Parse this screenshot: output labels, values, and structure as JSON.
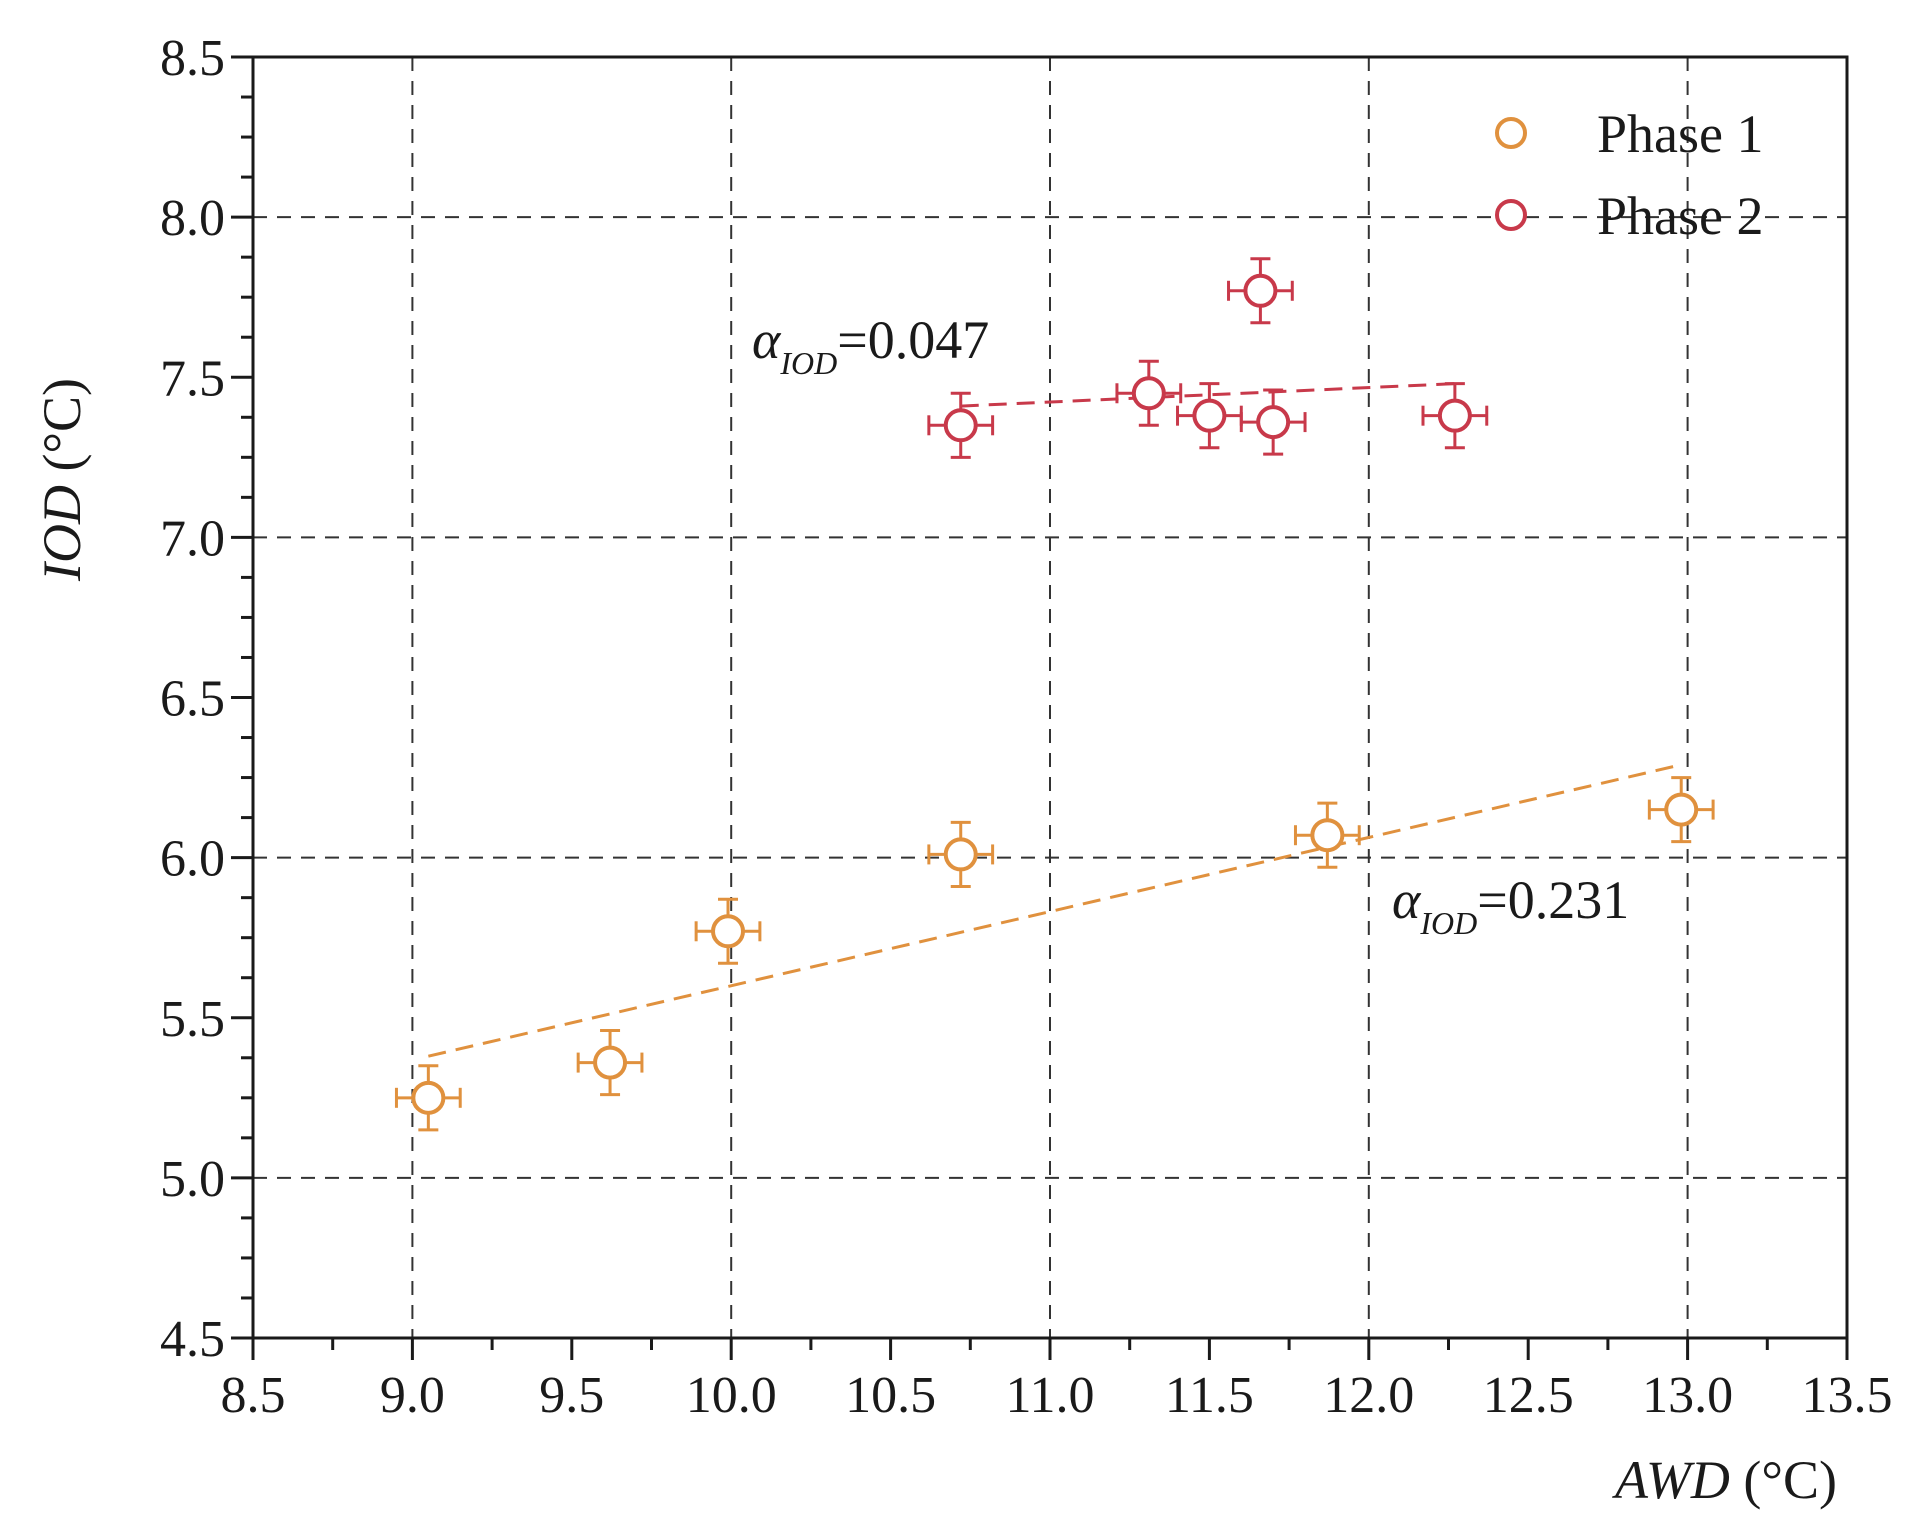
{
  "chart_data": {
    "type": "scatter",
    "xlabel": {
      "var": "AWD",
      "unit": " (°C)"
    },
    "ylabel": {
      "var": "IOD",
      "unit": " (°C)"
    },
    "xlim": [
      8.5,
      13.5
    ],
    "ylim": [
      4.5,
      8.5
    ],
    "xticks": [
      "8.5",
      "9.0",
      "9.5",
      "10.0",
      "10.5",
      "11.0",
      "11.5",
      "12.0",
      "12.5",
      "13.0",
      "13.5"
    ],
    "yticks": [
      "4.5",
      "5.0",
      "5.5",
      "6.0",
      "6.5",
      "7.0",
      "7.5",
      "8.0",
      "8.5"
    ],
    "grid": true,
    "legend_position": "top-right",
    "series": [
      {
        "name": "Phase 1",
        "color": "#E0913E",
        "points": [
          {
            "x": 9.05,
            "y": 5.25,
            "xerr": 0.1,
            "yerr": 0.1
          },
          {
            "x": 9.62,
            "y": 5.36,
            "xerr": 0.1,
            "yerr": 0.1
          },
          {
            "x": 9.99,
            "y": 5.77,
            "xerr": 0.1,
            "yerr": 0.1
          },
          {
            "x": 10.72,
            "y": 6.01,
            "xerr": 0.1,
            "yerr": 0.1
          },
          {
            "x": 11.87,
            "y": 6.07,
            "xerr": 0.1,
            "yerr": 0.1
          },
          {
            "x": 12.98,
            "y": 6.15,
            "xerr": 0.1,
            "yerr": 0.1
          }
        ],
        "fit": {
          "x": [
            9.05,
            12.98
          ],
          "y": [
            5.38,
            6.29
          ]
        },
        "annotation": {
          "symbol": "α",
          "subscript": "IOD",
          "text": "=0.231"
        }
      },
      {
        "name": "Phase 2",
        "color": "#C8394A",
        "points": [
          {
            "x": 10.72,
            "y": 7.35,
            "xerr": 0.1,
            "yerr": 0.1
          },
          {
            "x": 11.31,
            "y": 7.45,
            "xerr": 0.1,
            "yerr": 0.1
          },
          {
            "x": 11.5,
            "y": 7.38,
            "xerr": 0.1,
            "yerr": 0.1
          },
          {
            "x": 11.66,
            "y": 7.77,
            "xerr": 0.1,
            "yerr": 0.1
          },
          {
            "x": 11.7,
            "y": 7.36,
            "xerr": 0.1,
            "yerr": 0.1
          },
          {
            "x": 12.27,
            "y": 7.38,
            "xerr": 0.1,
            "yerr": 0.1
          }
        ],
        "fit": {
          "x": [
            10.72,
            12.27
          ],
          "y": [
            7.41,
            7.48
          ]
        },
        "annotation": {
          "symbol": "α",
          "subscript": "IOD",
          "text": "=0.047"
        }
      }
    ]
  }
}
